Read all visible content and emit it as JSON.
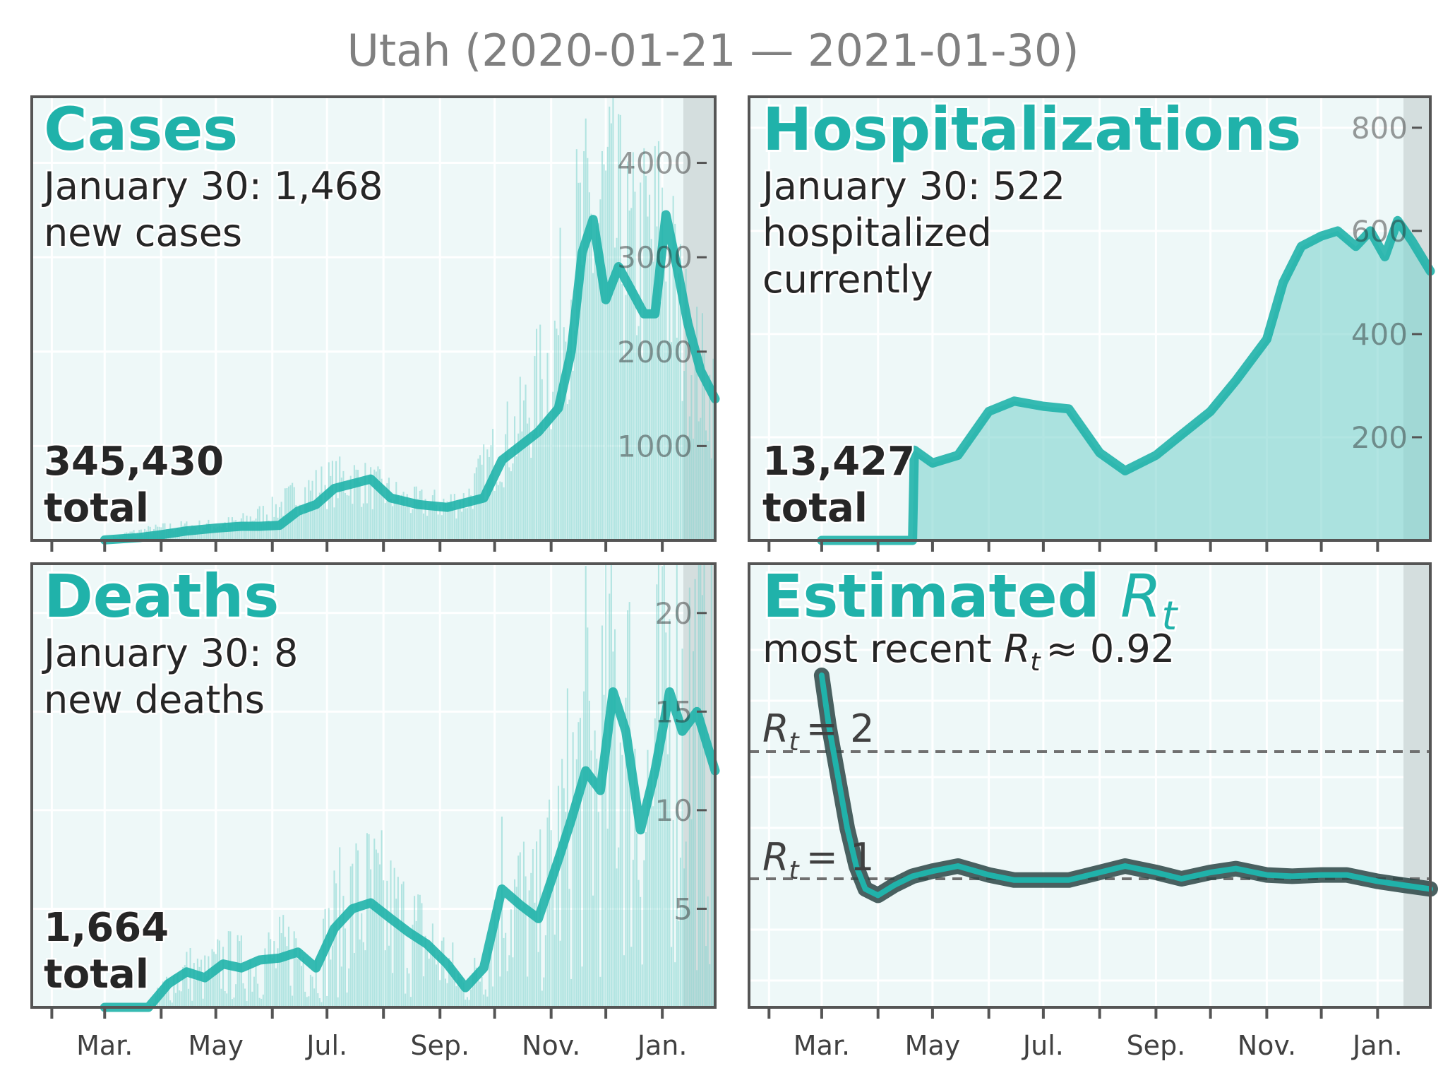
{
  "title": "Utah (2020-01-21 — 2021-01-30)",
  "colors": {
    "accent": "#20b2aa",
    "bar": "#7fd4ce",
    "panel_bg": "#eef8f8",
    "grid": "#ffffff",
    "shade": "#d4dede",
    "rt_dark": "#2b4545",
    "frame": "#555555"
  },
  "x_tick_labels": [
    "Mar.",
    "May",
    "Jul.",
    "Sep.",
    "Nov.",
    "Jan."
  ],
  "panels": {
    "cases": {
      "title": "Cases",
      "subtitle_line1": "January 30: 1,468",
      "subtitle_line2": "new cases",
      "total_value": "345,430",
      "total_label": "total",
      "yticks": [
        "1000",
        "2000",
        "3000",
        "4000"
      ]
    },
    "hosp": {
      "title": "Hospitalizations",
      "subtitle_line1": "January 30: 522",
      "subtitle_line2": "hospitalized",
      "subtitle_line3": "currently",
      "total_value": "13,427",
      "total_label": "total",
      "yticks": [
        "200",
        "400",
        "600",
        "800"
      ]
    },
    "deaths": {
      "title": "Deaths",
      "subtitle_line1": "January 30: 8",
      "subtitle_line2": "new deaths",
      "total_value": "1,664",
      "total_label": "total",
      "yticks": [
        "5",
        "10",
        "15",
        "20"
      ]
    },
    "rt": {
      "title_main": "Estimated",
      "title_symbol": "R",
      "title_sub": "t",
      "subtitle_prefix": "most recent",
      "subtitle_symbol": "R",
      "subtitle_sub": "t",
      "subtitle_value": "≈ 0.92",
      "ref2_symbol": "R",
      "ref2_sub": "t",
      "ref2_value": "= 2",
      "ref1_symbol": "R",
      "ref1_sub": "t",
      "ref1_value": "= 1"
    }
  },
  "chart_data": [
    {
      "type": "bar",
      "panel": "cases",
      "title": "Cases",
      "x_range": [
        "2020-01-21",
        "2021-01-30"
      ],
      "ylim": [
        0,
        4700
      ],
      "bar_series_note_free": true,
      "series": [
        {
          "kind": "bars",
          "x": [
            "2020-03-01",
            "2020-03-15",
            "2020-04-01",
            "2020-04-15",
            "2020-05-01",
            "2020-05-15",
            "2020-06-01",
            "2020-06-15",
            "2020-07-01",
            "2020-07-15",
            "2020-08-01",
            "2020-08-15",
            "2020-09-01",
            "2020-09-15",
            "2020-10-01",
            "2020-10-15",
            "2020-11-01",
            "2020-11-15",
            "2020-12-01",
            "2020-12-15",
            "2021-01-01",
            "2021-01-15",
            "2021-01-30"
          ],
          "values": [
            10,
            80,
            130,
            150,
            160,
            200,
            320,
            480,
            600,
            650,
            520,
            400,
            380,
            420,
            900,
            1200,
            1900,
            3000,
            3500,
            2900,
            3200,
            2000,
            1468
          ]
        },
        {
          "kind": "line",
          "x": [
            "2020-03-01",
            "2020-03-20",
            "2020-04-01",
            "2020-04-15",
            "2020-05-01",
            "2020-05-15",
            "2020-05-25",
            "2020-06-05",
            "2020-06-15",
            "2020-06-25",
            "2020-07-05",
            "2020-07-15",
            "2020-07-25",
            "2020-08-05",
            "2020-08-20",
            "2020-09-05",
            "2020-09-15",
            "2020-09-25",
            "2020-10-05",
            "2020-10-15",
            "2020-10-25",
            "2020-11-05",
            "2020-11-12",
            "2020-11-18",
            "2020-11-24",
            "2020-12-01",
            "2020-12-08",
            "2020-12-15",
            "2020-12-22",
            "2020-12-28",
            "2021-01-03",
            "2021-01-09",
            "2021-01-15",
            "2021-01-22",
            "2021-01-30"
          ],
          "values": [
            5,
            30,
            60,
            100,
            130,
            150,
            150,
            160,
            310,
            380,
            550,
            600,
            650,
            450,
            380,
            350,
            400,
            450,
            850,
            1000,
            1150,
            1400,
            2000,
            3050,
            3400,
            2550,
            2900,
            2650,
            2400,
            2400,
            3450,
            2900,
            2300,
            1800,
            1500
          ]
        }
      ]
    },
    {
      "type": "bar",
      "panel": "hosp",
      "title": "Hospitalizations",
      "x_range": [
        "2020-01-21",
        "2021-01-30"
      ],
      "ylim": [
        0,
        860
      ],
      "series": [
        {
          "kind": "line",
          "x": [
            "2020-03-01",
            "2020-04-01",
            "2020-04-20",
            "2020-04-21",
            "2020-05-01",
            "2020-05-15",
            "2020-06-01",
            "2020-06-15",
            "2020-07-01",
            "2020-07-15",
            "2020-08-01",
            "2020-08-15",
            "2020-09-01",
            "2020-09-15",
            "2020-10-01",
            "2020-10-15",
            "2020-11-01",
            "2020-11-10",
            "2020-11-20",
            "2020-12-01",
            "2020-12-10",
            "2020-12-20",
            "2020-12-28",
            "2021-01-05",
            "2021-01-12",
            "2021-01-20",
            "2021-01-30"
          ],
          "values": [
            0,
            0,
            0,
            175,
            150,
            165,
            250,
            270,
            260,
            255,
            170,
            135,
            165,
            205,
            250,
            310,
            390,
            500,
            570,
            590,
            600,
            570,
            600,
            550,
            620,
            580,
            522
          ]
        }
      ]
    },
    {
      "type": "bar",
      "panel": "deaths",
      "title": "Deaths",
      "x_range": [
        "2020-01-21",
        "2021-01-30"
      ],
      "ylim": [
        0,
        22.5
      ],
      "series": [
        {
          "kind": "line",
          "x": [
            "2020-03-01",
            "2020-03-25",
            "2020-04-05",
            "2020-04-15",
            "2020-04-25",
            "2020-05-05",
            "2020-05-15",
            "2020-05-25",
            "2020-06-05",
            "2020-06-15",
            "2020-06-25",
            "2020-07-05",
            "2020-07-15",
            "2020-07-25",
            "2020-08-05",
            "2020-08-15",
            "2020-08-25",
            "2020-09-05",
            "2020-09-15",
            "2020-09-25",
            "2020-10-05",
            "2020-10-15",
            "2020-10-25",
            "2020-11-05",
            "2020-11-12",
            "2020-11-20",
            "2020-11-28",
            "2020-12-05",
            "2020-12-12",
            "2020-12-20",
            "2020-12-28",
            "2021-01-05",
            "2021-01-12",
            "2021-01-20",
            "2021-01-30"
          ],
          "values": [
            0,
            0,
            1.2,
            1.8,
            1.5,
            2.2,
            2.0,
            2.4,
            2.5,
            2.8,
            2.0,
            4.0,
            5.0,
            5.3,
            4.5,
            3.8,
            3.2,
            2.2,
            1.0,
            2.0,
            6.0,
            5.2,
            4.5,
            7.5,
            9.5,
            12.0,
            11.0,
            16.0,
            14.0,
            9.0,
            12.0,
            16.0,
            14.0,
            15.0,
            12.0
          ]
        }
      ]
    },
    {
      "type": "line",
      "panel": "rt",
      "title": "Estimated Rt",
      "x_range": [
        "2020-01-21",
        "2021-01-30"
      ],
      "reference_lines": [
        1,
        2
      ],
      "series": [
        {
          "kind": "line",
          "x": [
            "2020-03-01",
            "2020-03-05",
            "2020-03-10",
            "2020-03-15",
            "2020-03-20",
            "2020-03-25",
            "2020-04-01",
            "2020-04-10",
            "2020-04-20",
            "2020-05-01",
            "2020-05-15",
            "2020-06-01",
            "2020-06-15",
            "2020-07-01",
            "2020-07-15",
            "2020-08-01",
            "2020-08-15",
            "2020-09-01",
            "2020-09-15",
            "2020-10-01",
            "2020-10-15",
            "2020-11-01",
            "2020-11-15",
            "2020-12-01",
            "2020-12-15",
            "2021-01-01",
            "2021-01-15",
            "2021-01-30"
          ],
          "values": [
            2.6,
            2.2,
            1.8,
            1.4,
            1.1,
            0.92,
            0.87,
            0.95,
            1.02,
            1.06,
            1.1,
            1.03,
            0.99,
            0.99,
            0.99,
            1.05,
            1.1,
            1.05,
            1.0,
            1.05,
            1.08,
            1.03,
            1.02,
            1.03,
            1.03,
            0.98,
            0.95,
            0.92
          ]
        }
      ]
    }
  ]
}
